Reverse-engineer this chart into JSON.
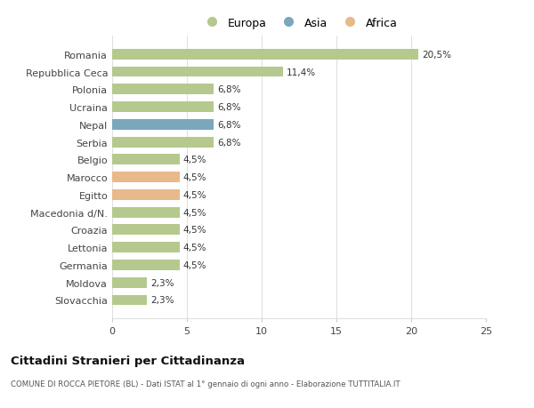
{
  "categories": [
    "Romania",
    "Repubblica Ceca",
    "Polonia",
    "Ucraina",
    "Nepal",
    "Serbia",
    "Belgio",
    "Marocco",
    "Egitto",
    "Macedonia d/N.",
    "Croazia",
    "Lettonia",
    "Germania",
    "Moldova",
    "Slovacchia"
  ],
  "values": [
    20.5,
    11.4,
    6.8,
    6.8,
    6.8,
    6.8,
    4.5,
    4.5,
    4.5,
    4.5,
    4.5,
    4.5,
    4.5,
    2.3,
    2.3
  ],
  "labels": [
    "20,5%",
    "11,4%",
    "6,8%",
    "6,8%",
    "6,8%",
    "6,8%",
    "4,5%",
    "4,5%",
    "4,5%",
    "4,5%",
    "4,5%",
    "4,5%",
    "4,5%",
    "2,3%",
    "2,3%"
  ],
  "continents": [
    "Europa",
    "Europa",
    "Europa",
    "Europa",
    "Asia",
    "Europa",
    "Europa",
    "Africa",
    "Africa",
    "Europa",
    "Europa",
    "Europa",
    "Europa",
    "Europa",
    "Europa"
  ],
  "colors": {
    "Europa": "#b5c98e",
    "Asia": "#7ba7bc",
    "Africa": "#e8b98a"
  },
  "xlim": [
    0,
    25
  ],
  "xticks": [
    0,
    5,
    10,
    15,
    20,
    25
  ],
  "title": "Cittadini Stranieri per Cittadinanza",
  "subtitle": "COMUNE DI ROCCA PIETORE (BL) - Dati ISTAT al 1° gennaio di ogni anno - Elaborazione TUTTITALIA.IT",
  "background_color": "#ffffff",
  "grid_color": "#e0e0e0"
}
